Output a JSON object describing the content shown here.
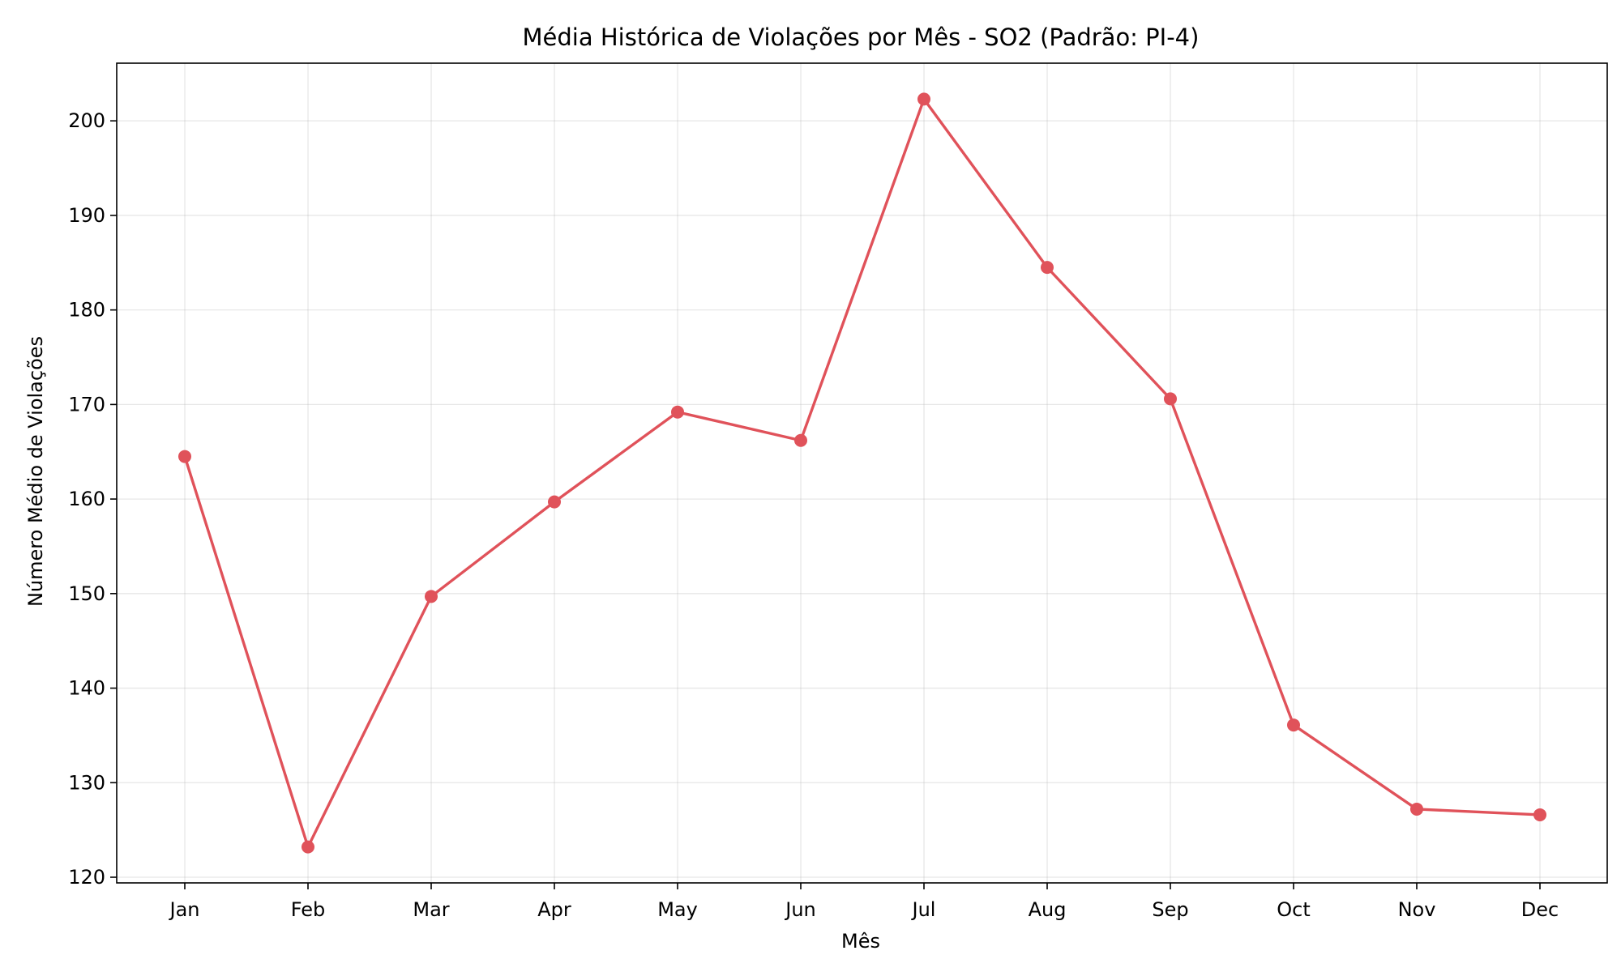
{
  "chart_data": {
    "type": "line",
    "title": "Média Histórica de Violações por Mês - SO2 (Padrão: PI-4)",
    "xlabel": "Mês",
    "ylabel": "Número Médio de Violações",
    "categories": [
      "Jan",
      "Feb",
      "Mar",
      "Apr",
      "May",
      "Jun",
      "Jul",
      "Aug",
      "Sep",
      "Oct",
      "Nov",
      "Dec"
    ],
    "series": [
      {
        "values": [
          164.5,
          123.2,
          149.7,
          159.7,
          169.2,
          166.2,
          202.3,
          184.5,
          170.6,
          136.1,
          127.2,
          126.6
        ]
      }
    ],
    "yticks": [
      120,
      130,
      140,
      150,
      160,
      170,
      180,
      190,
      200
    ],
    "ylim": [
      119.4,
      206.1
    ],
    "grid": true,
    "legend": "none",
    "colors": {
      "series": "#e0525a"
    },
    "connected": [
      false,
      true,
      true,
      true,
      true,
      true,
      true,
      true,
      true,
      true,
      true,
      true
    ]
  }
}
